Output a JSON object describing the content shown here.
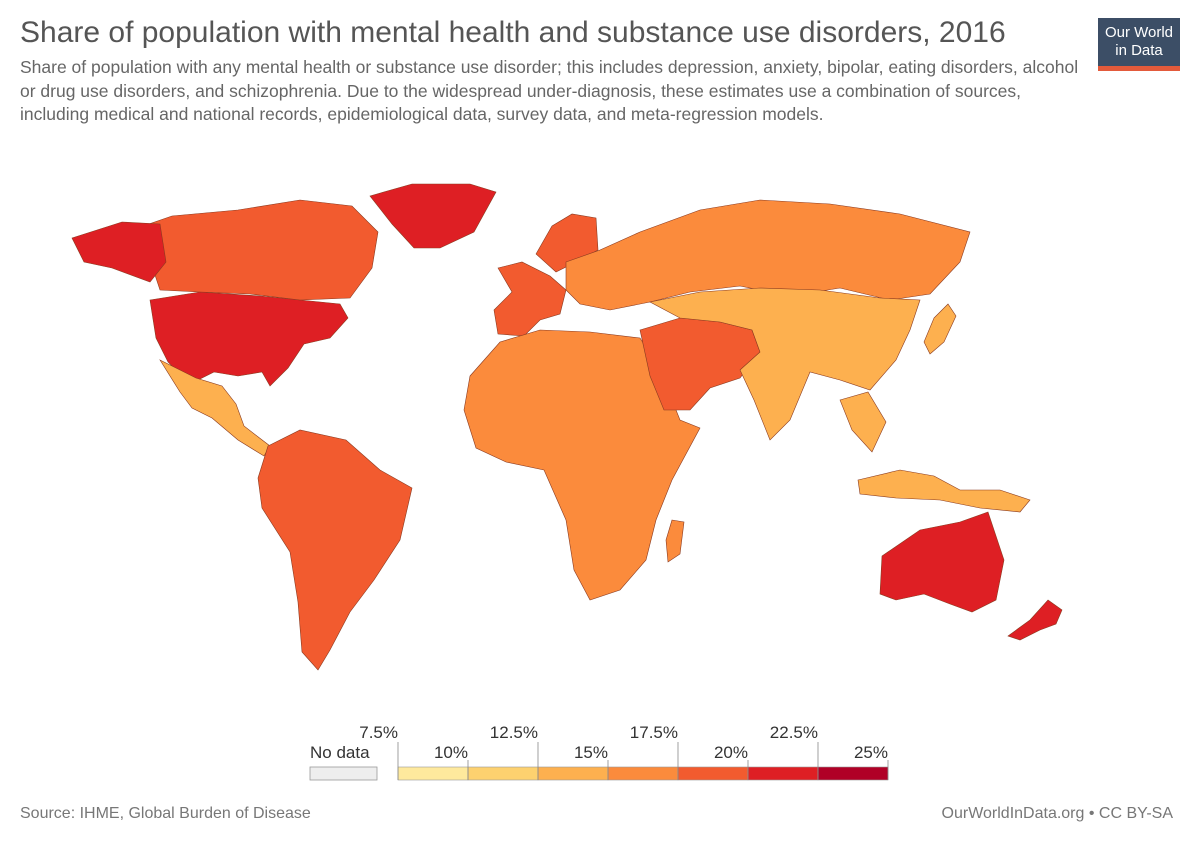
{
  "title": "Share of population with mental health and substance use disorders, 2016",
  "subtitle": "Share of population with any mental health or substance use disorder; this includes depression, anxiety, bipolar, eating disorders, alcohol or drug use disorders, and schizophrenia. Due to the widespread under-diagnosis, these estimates use a combination of sources, including medical and national records, epidemiological data, survey data, and meta-regression models.",
  "logo": {
    "line1": "Our World",
    "line2": "in Data",
    "color": "#3c4e66",
    "accent": "#e35a3b"
  },
  "legend": {
    "no_data_label": "No data",
    "no_data_color": "#eeeeee",
    "upper_ticks": [
      "7.5%",
      "12.5%",
      "17.5%",
      "22.5%"
    ],
    "lower_ticks": [
      "10%",
      "15%",
      "20%",
      "25%"
    ],
    "bins": [
      {
        "from": 7.5,
        "to": 10,
        "color": "#fee99d"
      },
      {
        "from": 10,
        "to": 12.5,
        "color": "#fdd16f"
      },
      {
        "from": 12.5,
        "to": 15,
        "color": "#fdb04f"
      },
      {
        "from": 15,
        "to": 17.5,
        "color": "#fb8b3c"
      },
      {
        "from": 17.5,
        "to": 20,
        "color": "#f25b2f"
      },
      {
        "from": 20,
        "to": 22.5,
        "color": "#de1f24"
      },
      {
        "from": 22.5,
        "to": 25,
        "color": "#b00026"
      }
    ]
  },
  "map": {
    "color_scale": "sequential orange-red",
    "regions": [
      {
        "name": "North America",
        "bin": 5
      },
      {
        "name": "Canada",
        "bin": 4
      },
      {
        "name": "Greenland",
        "bin": 5
      },
      {
        "name": "Mexico and Central America",
        "bin": 2
      },
      {
        "name": "South America",
        "bin": 4
      },
      {
        "name": "Western Europe",
        "bin": 4
      },
      {
        "name": "Eastern Europe and Russia",
        "bin": 3
      },
      {
        "name": "Africa",
        "bin": 3
      },
      {
        "name": "Middle East",
        "bin": 4
      },
      {
        "name": "China and South Asia",
        "bin": 2
      },
      {
        "name": "Southeast Asia",
        "bin": 2
      },
      {
        "name": "Australia",
        "bin": 5
      },
      {
        "name": "New Zealand",
        "bin": 5
      }
    ]
  },
  "footer": {
    "source": "Source: IHME, Global Burden of Disease",
    "credit": "OurWorldInData.org • CC BY-SA"
  }
}
